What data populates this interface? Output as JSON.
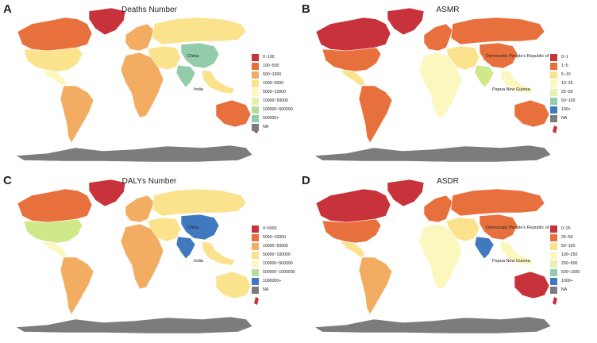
{
  "colors": {
    "red": "#c8323a",
    "orange": "#e8703c",
    "lightorange": "#f3ad62",
    "yellow": "#fbe28c",
    "paleyellow": "#fcf7bf",
    "lightgreen": "#cfe88a",
    "green": "#93ccaa",
    "blue": "#4179bf",
    "na": "#7c7c7c"
  },
  "panels": [
    {
      "letter": "A",
      "title": "Deaths Number",
      "legend": [
        {
          "label": "0~100",
          "color": "#c8323a"
        },
        {
          "label": "100~500",
          "color": "#e8703c"
        },
        {
          "label": "500~1000",
          "color": "#f3ad62"
        },
        {
          "label": "1000~5000",
          "color": "#fbe28c"
        },
        {
          "label": "5000~10000",
          "color": "#fcf7bf"
        },
        {
          "label": "10000~50000",
          "color": "#e6f1b0"
        },
        {
          "label": "100000~500000",
          "color": "#b7dd9a"
        },
        {
          "label": "500000+",
          "color": "#93ccaa"
        },
        {
          "label": "NA",
          "color": "#7c7c7c"
        }
      ],
      "map_labels": {
        "first": "China",
        "second": "India"
      },
      "regions": {
        "north_america": "#e8703c",
        "greenland": "#c8323a",
        "usa": "#fbe28c",
        "central_america": "#fcf7bf",
        "south_america": "#f3ad62",
        "europe": "#f3ad62",
        "russia": "#fbe28c",
        "africa": "#f3ad62",
        "middle_east": "#fbe28c",
        "india": "#93ccaa",
        "china": "#93ccaa",
        "southeast_asia": "#fbe28c",
        "australia": "#e8703c",
        "antarctica": "#7c7c7c"
      }
    },
    {
      "letter": "B",
      "title": "ASMR",
      "legend": [
        {
          "label": "0~1",
          "color": "#c8323a"
        },
        {
          "label": "1~5",
          "color": "#e8703c"
        },
        {
          "label": "5~10",
          "color": "#fbe28c"
        },
        {
          "label": "10~25",
          "color": "#fcf7bf"
        },
        {
          "label": "25~50",
          "color": "#e6f1b0"
        },
        {
          "label": "50~100",
          "color": "#93ccaa"
        },
        {
          "label": "100+",
          "color": "#4179bf"
        },
        {
          "label": "NA",
          "color": "#7c7c7c"
        }
      ],
      "map_labels": {
        "first": "Democratic People's Republic of I",
        "second": "Papua New Guinea"
      },
      "regions": {
        "north_america": "#c8323a",
        "greenland": "#c8323a",
        "usa": "#e8703c",
        "central_america": "#fbe28c",
        "south_america": "#e8703c",
        "europe": "#e8703c",
        "russia": "#e8703c",
        "africa": "#fcf7bf",
        "middle_east": "#fbe28c",
        "india": "#cfe88a",
        "china": "#e8703c",
        "southeast_asia": "#fcf7bf",
        "australia": "#e8703c",
        "antarctica": "#7c7c7c"
      }
    },
    {
      "letter": "C",
      "title": "DALYs Number",
      "legend": [
        {
          "label": "0~5000",
          "color": "#c8323a"
        },
        {
          "label": "5000~10000",
          "color": "#e8703c"
        },
        {
          "label": "10000~50000",
          "color": "#f3ad62"
        },
        {
          "label": "50000~100000",
          "color": "#fbe28c"
        },
        {
          "label": "100000~500000",
          "color": "#fcf7bf"
        },
        {
          "label": "500000~1000000",
          "color": "#b7dd9a"
        },
        {
          "label": "1000000+",
          "color": "#4179bf"
        },
        {
          "label": "NA",
          "color": "#7c7c7c"
        }
      ],
      "map_labels": {
        "first": "China",
        "second": "India"
      },
      "regions": {
        "north_america": "#e8703c",
        "greenland": "#c8323a",
        "usa": "#cfe88a",
        "central_america": "#fcf7bf",
        "south_america": "#f3ad62",
        "europe": "#f3ad62",
        "russia": "#fbe28c",
        "africa": "#f3ad62",
        "middle_east": "#fbe28c",
        "india": "#4179bf",
        "china": "#4179bf",
        "southeast_asia": "#fbe28c",
        "australia": "#fbe28c",
        "antarctica": "#7c7c7c"
      }
    },
    {
      "letter": "D",
      "title": "ASDR",
      "legend": [
        {
          "label": "0~25",
          "color": "#c8323a"
        },
        {
          "label": "25~50",
          "color": "#e8703c"
        },
        {
          "label": "50~100",
          "color": "#fbe28c"
        },
        {
          "label": "100~250",
          "color": "#fcf7bf"
        },
        {
          "label": "250~500",
          "color": "#e6f1b0"
        },
        {
          "label": "500~1000",
          "color": "#93ccaa"
        },
        {
          "label": "1000+",
          "color": "#4179bf"
        },
        {
          "label": "NA",
          "color": "#7c7c7c"
        }
      ],
      "map_labels": {
        "first": "Democratic People's Republic of",
        "second": "Papua New Guinea"
      },
      "regions": {
        "north_america": "#c8323a",
        "greenland": "#c8323a",
        "usa": "#e8703c",
        "central_america": "#fbe28c",
        "south_america": "#f3ad62",
        "europe": "#e8703c",
        "russia": "#e8703c",
        "africa": "#fcf7bf",
        "middle_east": "#fbe28c",
        "india": "#4179bf",
        "china": "#e8703c",
        "southeast_asia": "#fcf7bf",
        "australia": "#c8323a",
        "antarctica": "#7c7c7c"
      }
    }
  ]
}
